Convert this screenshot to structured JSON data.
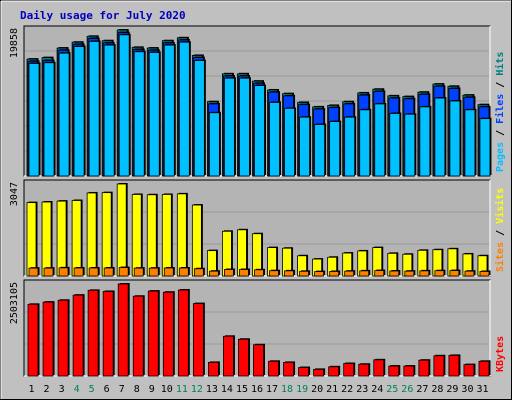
{
  "colors": {
    "frame_bg": "#c0c0c0",
    "plot_bg": "#b4b4b4",
    "title": "#0000c0",
    "pages": "#00c0ff",
    "files": "#0040ff",
    "hits": "#008080",
    "sites": "#ff8000",
    "visits": "#ffff00",
    "kbytes": "#ff0000",
    "weekend_label": "#008060",
    "weekday_label": "#000000"
  },
  "chart_data": {
    "type": "bar",
    "title": "Daily usage for July 2020",
    "categories": [
      "1",
      "2",
      "3",
      "4",
      "5",
      "6",
      "7",
      "8",
      "9",
      "10",
      "11",
      "12",
      "13",
      "14",
      "15",
      "16",
      "17",
      "18",
      "19",
      "20",
      "21",
      "22",
      "23",
      "24",
      "25",
      "26",
      "27",
      "28",
      "29",
      "30",
      "31"
    ],
    "weekend_days": [
      "4",
      "5",
      "11",
      "12",
      "18",
      "19",
      "25",
      "26"
    ],
    "panels": [
      {
        "name": "hits-files-pages",
        "ylabel_max": "19858",
        "ylim": [
          0,
          19858
        ],
        "legend": [
          "Pages",
          "Files",
          "Hits"
        ],
        "series": [
          {
            "name": "Hits",
            "values": [
              15900,
              16100,
              17400,
              18200,
              19000,
              18400,
              19858,
              17500,
              17400,
              18400,
              18800,
              16400,
              10100,
              13900,
              13900,
              12900,
              11700,
              11200,
              10000,
              9400,
              9600,
              10100,
              11300,
              11800,
              10900,
              10800,
              11400,
              12500,
              12200,
              11000,
              9700
            ]
          },
          {
            "name": "Files",
            "values": [
              15600,
              15700,
              17100,
              17900,
              18700,
              18100,
              19500,
              17200,
              17100,
              18100,
              18500,
              16100,
              9800,
              13600,
              13600,
              12600,
              11400,
              10900,
              9700,
              9100,
              9300,
              9800,
              11000,
              11500,
              10600,
              10500,
              11100,
              12200,
              11900,
              10700,
              9400
            ]
          },
          {
            "name": "Pages",
            "values": [
              15300,
              15400,
              16700,
              17600,
              18300,
              17800,
              19200,
              16900,
              16800,
              17800,
              18200,
              15700,
              8600,
              13300,
              13300,
              12300,
              10000,
              9200,
              8000,
              7000,
              7400,
              8000,
              9000,
              9800,
              8500,
              8400,
              9400,
              10600,
              10200,
              9000,
              7800
            ]
          }
        ]
      },
      {
        "name": "visits-sites",
        "ylabel_max": "3047",
        "ylim": [
          0,
          3047
        ],
        "legend": [
          "Sites",
          "Visits"
        ],
        "series": [
          {
            "name": "Visits",
            "values": [
              2430,
              2450,
              2480,
              2500,
              2750,
              2760,
              3047,
              2700,
              2690,
              2700,
              2720,
              2350,
              840,
              1480,
              1530,
              1400,
              940,
              920,
              670,
              560,
              620,
              760,
              830,
              940,
              750,
              720,
              850,
              870,
              900,
              730,
              670
            ]
          },
          {
            "name": "Sites",
            "values": [
              260,
              260,
              270,
              265,
              265,
              265,
              280,
              260,
              260,
              265,
              265,
              240,
              160,
              215,
              215,
              205,
              175,
              170,
              155,
              145,
              150,
              160,
              170,
              180,
              165,
              160,
              170,
              175,
              180,
              160,
              150
            ]
          }
        ]
      },
      {
        "name": "kbytes",
        "ylabel_max": "2503105",
        "ylim": [
          0,
          2503105
        ],
        "legend": [
          "KBytes"
        ],
        "series": [
          {
            "name": "KBytes",
            "values": [
              1950000,
              2010000,
              2060000,
              2200000,
              2330000,
              2300000,
              2503105,
              2170000,
              2310000,
              2280000,
              2340000,
              1970000,
              370000,
              1080000,
              1000000,
              850000,
              400000,
              370000,
              230000,
              180000,
              250000,
              340000,
              320000,
              440000,
              270000,
              270000,
              430000,
              550000,
              560000,
              310000,
              400000
            ]
          }
        ]
      }
    ],
    "grid": true
  }
}
